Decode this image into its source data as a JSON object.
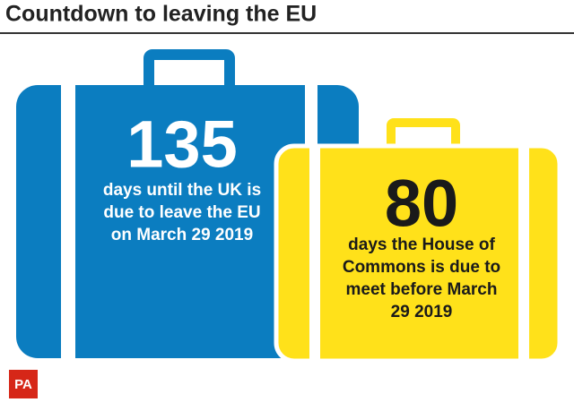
{
  "title": "Countdown to leaving the EU",
  "cards": [
    {
      "number": 135,
      "lines": [
        "days until the UK is",
        "due to leave the EU",
        "on March 29 2019"
      ]
    },
    {
      "number": 80,
      "lines": [
        "days the House of",
        "Commons is due to",
        "meet before March",
        "29 2019"
      ]
    }
  ],
  "logo": "PA"
}
